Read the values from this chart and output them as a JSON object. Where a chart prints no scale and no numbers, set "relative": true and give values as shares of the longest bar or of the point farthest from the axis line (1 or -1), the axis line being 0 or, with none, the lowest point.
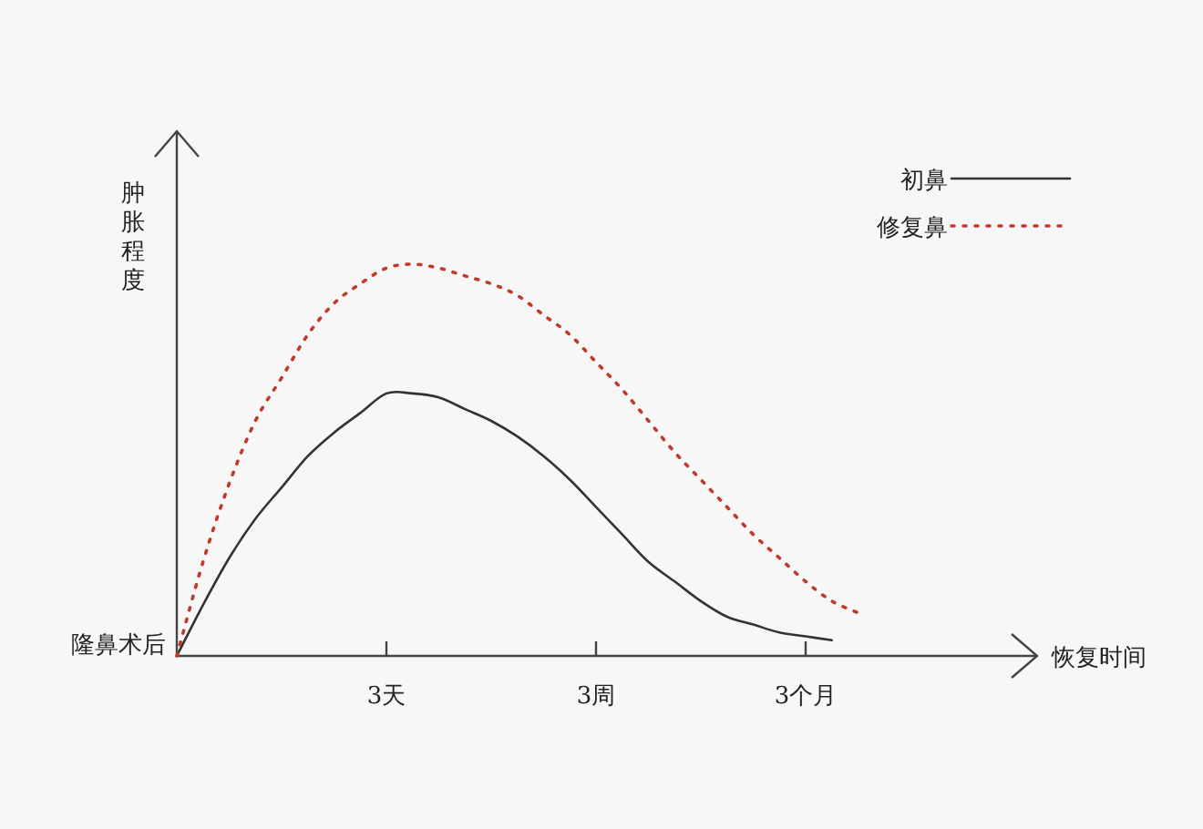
{
  "chart_data": {
    "type": "line",
    "relative": true,
    "ylabel": "肿胀程度",
    "categories": [
      null,
      null,
      null,
      null,
      null,
      null,
      null,
      null,
      "3天",
      null,
      null,
      null,
      null,
      null,
      null,
      null,
      "3周",
      null,
      null,
      null,
      null,
      null,
      null,
      null,
      "3个月",
      null,
      null
    ],
    "annotations": [
      "隆鼻术后",
      "恢复时间"
    ],
    "legend": "top right",
    "grid": false,
    "series": [
      {
        "name": "初鼻",
        "color": "#333333",
        "line_style": "solid",
        "values": [
          0,
          0.13,
          0.25,
          0.35,
          0.43,
          0.51,
          0.57,
          0.62,
          0.67,
          0.67,
          0.66,
          0.63,
          0.6,
          0.56,
          0.51,
          0.45,
          0.38,
          0.31,
          0.24,
          0.19,
          0.14,
          0.1,
          0.08,
          0.06,
          0.05,
          0.04,
          null
        ]
      },
      {
        "name": "修复鼻",
        "color": "#c0392b",
        "line_style": "dotted",
        "values": [
          0,
          0.24,
          0.44,
          0.6,
          0.71,
          0.82,
          0.9,
          0.95,
          0.99,
          1.0,
          0.99,
          0.97,
          0.95,
          0.92,
          0.87,
          0.82,
          0.75,
          0.68,
          0.6,
          0.52,
          0.45,
          0.38,
          0.31,
          0.25,
          0.19,
          0.14,
          0.11
        ]
      }
    ]
  }
}
